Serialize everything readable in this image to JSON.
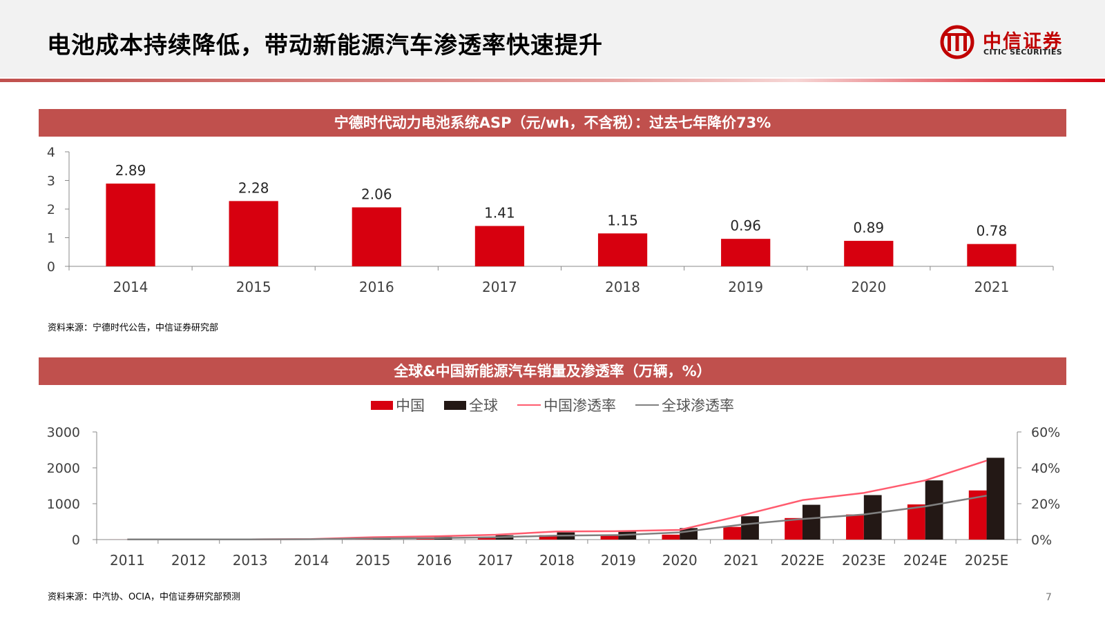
{
  "page": {
    "title": "电池成本持续降低，带动新能源汽车渗透率快速提升",
    "page_number": "7"
  },
  "logo": {
    "name_cn": "中信证券",
    "name_en": "CITIC SECURITIES",
    "brand_color": "#c00000"
  },
  "colors": {
    "banner": "#c0504d",
    "bar_red": "#d7000f",
    "bar_black": "#231815",
    "line_pink": "#ff5b6e",
    "line_gray": "#7f7f7f"
  },
  "chart1": {
    "banner": "宁德时代动力电池系统ASP（元/wh，不含税）：过去七年降价73%",
    "source": "资料来源：宁德时代公告，中信证券研究部"
  },
  "chart2": {
    "banner": "全球&中国新能源汽车销量及渗透率（万辆，%）",
    "source": "资料来源：中汽协、OCIA，中信证券研究部预测",
    "legend": {
      "china": "中国",
      "global": "全球",
      "china_rate": "中国渗透率",
      "global_rate": "全球渗透率"
    }
  },
  "chart_data": [
    {
      "type": "bar",
      "title": "宁德时代动力电池系统ASP（元/wh，不含税）：过去七年降价73%",
      "categories": [
        "2014",
        "2015",
        "2016",
        "2017",
        "2018",
        "2019",
        "2020",
        "2021"
      ],
      "values": [
        2.89,
        2.28,
        2.06,
        1.41,
        1.15,
        0.96,
        0.89,
        0.78
      ],
      "data_labels": [
        "2.89",
        "2.28",
        "2.06",
        "1.41",
        "1.15",
        "0.96",
        "0.89",
        "0.78"
      ],
      "ylim": [
        0,
        4
      ],
      "yticks": [
        "0",
        "1",
        "2",
        "3",
        "4"
      ],
      "grid": false,
      "legend": "none"
    },
    {
      "type": "bar",
      "title": "全球&中国新能源汽车销量及渗透率（万辆，%）",
      "categories": [
        "2011",
        "2012",
        "2013",
        "2014",
        "2015",
        "2016",
        "2017",
        "2018",
        "2019",
        "2020",
        "2021",
        "2022E",
        "2023E",
        "2024E",
        "2025E"
      ],
      "series": [
        {
          "name": "中国",
          "kind": "bar",
          "axis": "left",
          "values": [
            1,
            1,
            2,
            7,
            33,
            51,
            78,
            126,
            121,
            137,
            353,
            600,
            700,
            980,
            1370
          ]
        },
        {
          "name": "全球",
          "kind": "bar",
          "axis": "left",
          "values": [
            5,
            12,
            20,
            32,
            55,
            78,
            120,
            200,
            220,
            320,
            650,
            970,
            1240,
            1650,
            2280
          ]
        },
        {
          "name": "中国渗透率",
          "kind": "line",
          "axis": "right",
          "values": [
            0.1,
            0.1,
            0.1,
            0.3,
            1.3,
            1.8,
            2.7,
            4.5,
            4.7,
            5.4,
            13.4,
            22.0,
            26.0,
            33.0,
            44.0
          ]
        },
        {
          "name": "全球渗透率",
          "kind": "line",
          "axis": "right",
          "values": [
            0.1,
            0.1,
            0.1,
            0.2,
            0.6,
            0.8,
            1.3,
            2.2,
            2.5,
            4.0,
            8.3,
            11.5,
            14.0,
            18.5,
            24.5
          ]
        }
      ],
      "ylim_left": [
        0,
        3000
      ],
      "yticks_left": [
        "0",
        "1000",
        "2000",
        "3000"
      ],
      "ylim_right": [
        0,
        60
      ],
      "yticks_right": [
        "0%",
        "20%",
        "40%",
        "60%"
      ],
      "grid": false,
      "legend": "top-center"
    }
  ]
}
